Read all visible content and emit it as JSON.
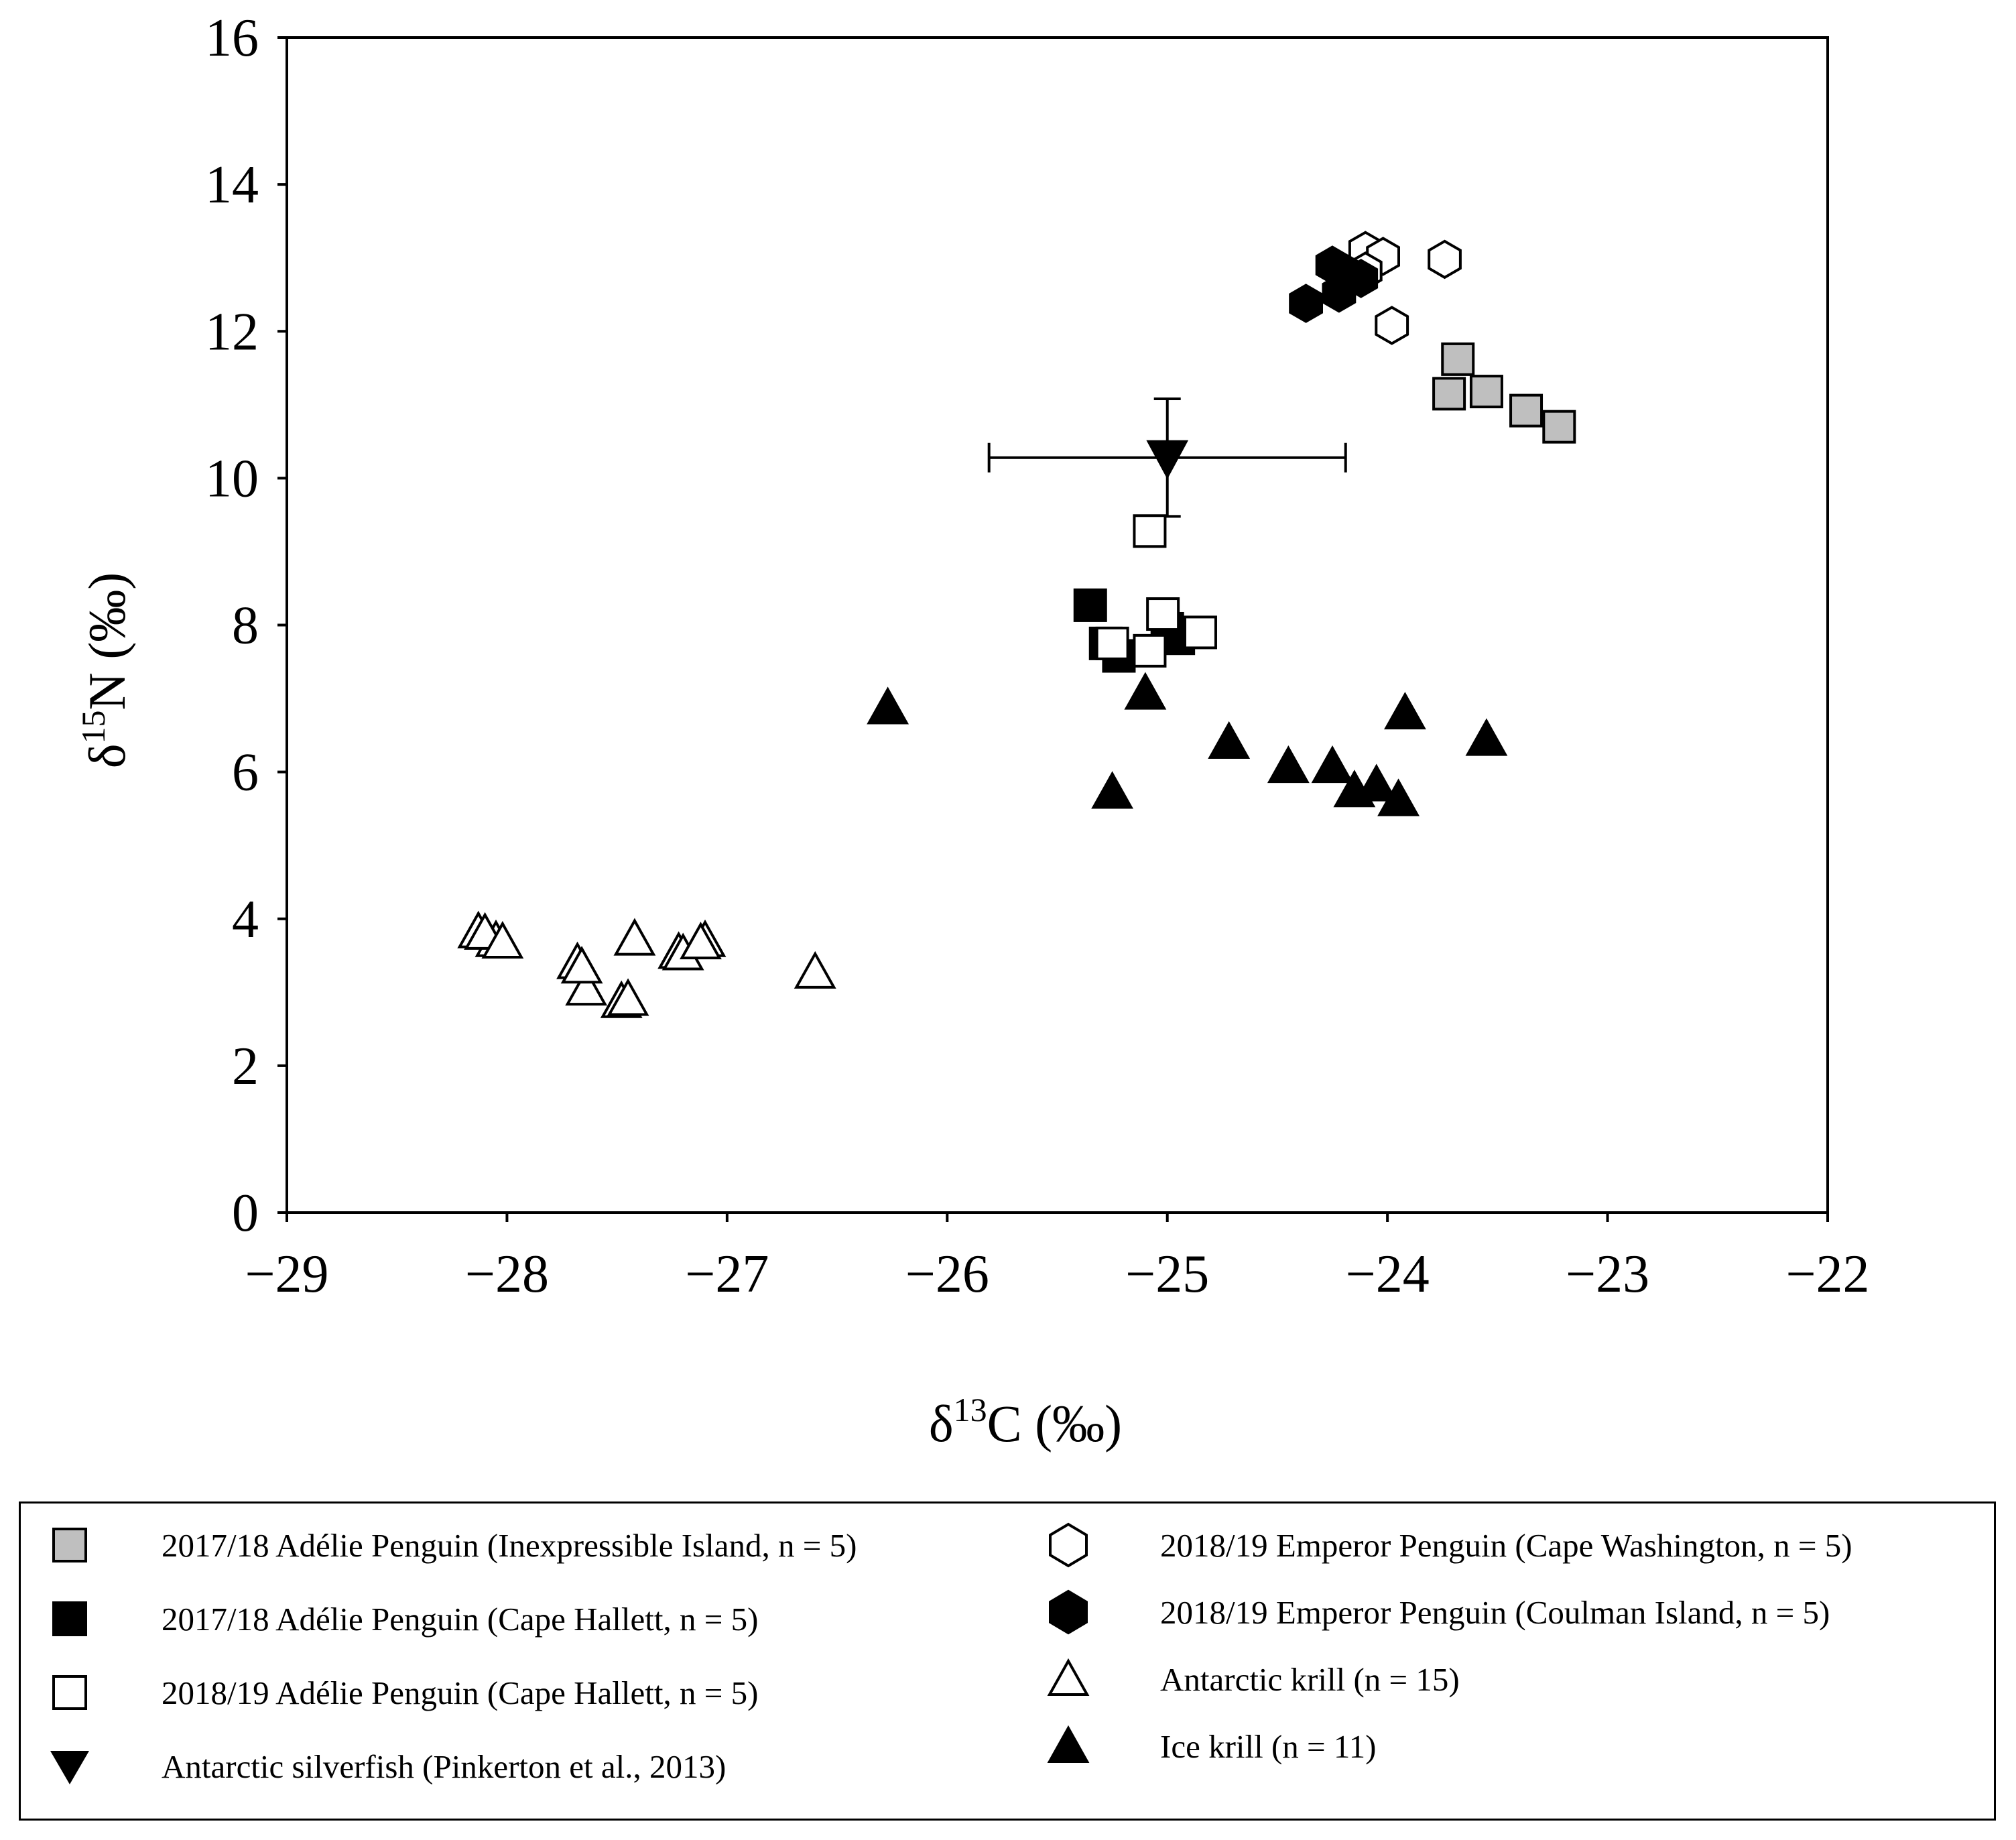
{
  "chart_data": {
    "type": "scatter",
    "xlabel_main": "δ",
    "xlabel_sup": "13",
    "xlabel_rest": "C (‰)",
    "ylabel_main": "δ",
    "ylabel_sup": "15",
    "ylabel_rest": "N (‰)",
    "xlim": [
      -29,
      -22
    ],
    "ylim": [
      0,
      16
    ],
    "x_ticks": [
      -29,
      -28,
      -27,
      -26,
      -25,
      -24,
      -23,
      -22
    ],
    "x_tick_labels": [
      "−29",
      "−28",
      "−27",
      "−26",
      "−25",
      "−24",
      "−23",
      "−22"
    ],
    "y_ticks": [
      0,
      2,
      4,
      6,
      8,
      10,
      12,
      14,
      16
    ],
    "y_tick_labels": [
      "0",
      "2",
      "4",
      "6",
      "8",
      "10",
      "12",
      "14",
      "16"
    ],
    "series": [
      {
        "name": "2017/18 Adélie Penguin (Inexpressible Island, n = 5)",
        "label_year": "2017/18",
        "label_text": "Adélie Penguin (Inexpressible Island, n = 5)",
        "marker": "square",
        "fill": "#bfbfbf",
        "points": [
          [
            -23.68,
            11.62
          ],
          [
            -23.72,
            11.15
          ],
          [
            -23.55,
            11.18
          ],
          [
            -23.37,
            10.92
          ],
          [
            -23.22,
            10.7
          ]
        ]
      },
      {
        "name": "2017/18 Adélie Penguin (Cape Hallett, n = 5)",
        "label_year": "2017/18",
        "label_text": "Adélie Penguin (Cape Hallett, n = 5)",
        "marker": "square",
        "fill": "#000000",
        "points": [
          [
            -25.35,
            8.27
          ],
          [
            -25.28,
            7.75
          ],
          [
            -25.22,
            7.58
          ],
          [
            -25.0,
            7.95
          ],
          [
            -24.95,
            7.82
          ]
        ]
      },
      {
        "name": "2018/19 Adélie Penguin (Cape Hallett, n = 5)",
        "label_year": "2018/19",
        "label_text": "Adélie Penguin (Cape Hallett, n = 5)",
        "marker": "square",
        "fill": "#ffffff",
        "points": [
          [
            -25.08,
            9.28
          ],
          [
            -25.02,
            8.15
          ],
          [
            -25.25,
            7.75
          ],
          [
            -25.08,
            7.65
          ],
          [
            -24.85,
            7.9
          ]
        ]
      },
      {
        "name": "Antarctic silverfish (Pinkerton et al., 2013)",
        "label_year": "",
        "label_text": "Antarctic silverfish (Pinkerton et al., 2013)",
        "marker": "triangle-down",
        "fill": "#000000",
        "points": [
          [
            -25.0,
            10.28
          ]
        ],
        "error_x": [
          0.81
        ],
        "error_y": [
          0.8
        ]
      },
      {
        "name": "2018/19 Emperor Penguin (Cape Washington, n = 5)",
        "label_year": "2018/19",
        "label_text": "Emperor Penguin (Cape Washington, n = 5)",
        "marker": "hexagon",
        "fill": "#ffffff",
        "points": [
          [
            -24.1,
            13.1
          ],
          [
            -24.02,
            13.02
          ],
          [
            -24.1,
            12.82
          ],
          [
            -23.74,
            12.98
          ],
          [
            -23.98,
            12.08
          ]
        ]
      },
      {
        "name": "2018/19 Emperor Penguin (Coulman Island, n = 5)",
        "label_year": "2018/19",
        "label_text": "Emperor Penguin (Coulman Island, n = 5)",
        "marker": "hexagon",
        "fill": "#000000",
        "points": [
          [
            -24.25,
            12.9
          ],
          [
            -24.18,
            12.78
          ],
          [
            -24.12,
            12.72
          ],
          [
            -24.22,
            12.52
          ],
          [
            -24.37,
            12.38
          ]
        ]
      },
      {
        "name": "Antarctic krill (n = 15)",
        "label_year": "",
        "label_text": "Antarctic krill (n = 15)",
        "marker": "triangle-up",
        "fill": "#ffffff",
        "points": [
          [
            -28.13,
            3.8
          ],
          [
            -28.05,
            3.68
          ],
          [
            -27.68,
            3.38
          ],
          [
            -27.64,
            3.02
          ],
          [
            -27.48,
            2.85
          ],
          [
            -27.42,
            3.7
          ],
          [
            -27.22,
            3.52
          ],
          [
            -27.1,
            3.68
          ],
          [
            -26.6,
            3.25
          ],
          [
            -28.1,
            3.78
          ],
          [
            -27.66,
            3.32
          ],
          [
            -27.45,
            2.88
          ],
          [
            -27.2,
            3.5
          ],
          [
            -27.12,
            3.65
          ],
          [
            -28.02,
            3.66
          ]
        ]
      },
      {
        "name": "Ice krill (n = 11)",
        "label_year": "",
        "label_text": "Ice krill (n = 11)",
        "marker": "triangle-up",
        "fill": "#000000",
        "points": [
          [
            -26.27,
            6.85
          ],
          [
            -25.25,
            5.7
          ],
          [
            -25.1,
            7.05
          ],
          [
            -24.72,
            6.38
          ],
          [
            -24.45,
            6.05
          ],
          [
            -24.25,
            6.05
          ],
          [
            -24.15,
            5.72
          ],
          [
            -24.05,
            5.8
          ],
          [
            -23.95,
            5.6
          ],
          [
            -23.92,
            6.78
          ],
          [
            -23.55,
            6.42
          ]
        ]
      }
    ]
  }
}
